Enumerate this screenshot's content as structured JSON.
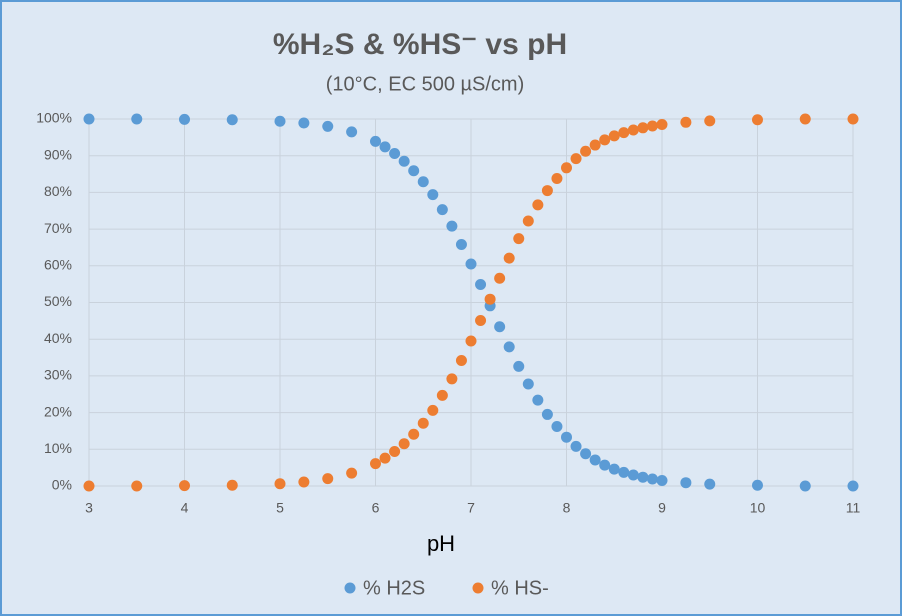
{
  "chart_data": {
    "type": "scatter",
    "title": "%H₂S & %HS⁻ vs pH",
    "subtitle": "(10°C, EC 500 µS/cm)",
    "x_label": "pH",
    "x": [
      3,
      3.5,
      4,
      4.5,
      5,
      5.25,
      5.5,
      5.75,
      6,
      6.1,
      6.2,
      6.3,
      6.4,
      6.5,
      6.6,
      6.7,
      6.8,
      6.9,
      7,
      7.1,
      7.2,
      7.3,
      7.4,
      7.5,
      7.6,
      7.7,
      7.8,
      7.9,
      8,
      8.1,
      8.2,
      8.3,
      8.4,
      8.5,
      8.6,
      8.7,
      8.8,
      8.9,
      9,
      9.25,
      9.5,
      10,
      10.5,
      11
    ],
    "series": [
      {
        "name": "% H2S",
        "color": "#5b9bd5",
        "values": [
          100.0,
          100.0,
          99.9,
          99.8,
          99.4,
          98.9,
          98.0,
          96.5,
          93.9,
          92.4,
          90.6,
          88.5,
          85.9,
          82.9,
          79.4,
          75.3,
          70.8,
          65.8,
          60.5,
          54.9,
          49.1,
          43.4,
          37.9,
          32.6,
          27.8,
          23.4,
          19.5,
          16.2,
          13.3,
          10.8,
          8.8,
          7.1,
          5.7,
          4.6,
          3.7,
          3.0,
          2.4,
          1.9,
          1.5,
          0.9,
          0.5,
          0.2,
          0.0,
          0.0
        ]
      },
      {
        "name": "% HS-",
        "color": "#ed7d31",
        "values": [
          0.0,
          0.0,
          0.1,
          0.2,
          0.6,
          1.1,
          2.0,
          3.5,
          6.1,
          7.6,
          9.4,
          11.5,
          14.1,
          17.1,
          20.6,
          24.7,
          29.2,
          34.2,
          39.5,
          45.1,
          50.9,
          56.6,
          62.1,
          67.4,
          72.2,
          76.6,
          80.5,
          83.8,
          86.7,
          89.2,
          91.2,
          92.9,
          94.3,
          95.4,
          96.3,
          97.0,
          97.6,
          98.1,
          98.5,
          99.1,
          99.5,
          99.8,
          100.0,
          100.0
        ]
      }
    ],
    "xlim": [
      3,
      11
    ],
    "xticks": [
      3,
      4,
      5,
      6,
      7,
      8,
      9,
      10,
      11
    ],
    "ylim": [
      0,
      100
    ],
    "yticks": [
      {
        "value": 0,
        "label": "0%"
      },
      {
        "value": 10,
        "label": "10%"
      },
      {
        "value": 20,
        "label": "20%"
      },
      {
        "value": 30,
        "label": "30%"
      },
      {
        "value": 40,
        "label": "40%"
      },
      {
        "value": 50,
        "label": "50%"
      },
      {
        "value": 60,
        "label": "60%"
      },
      {
        "value": 70,
        "label": "70%"
      },
      {
        "value": 80,
        "label": "80%"
      },
      {
        "value": 90,
        "label": "90%"
      },
      {
        "value": 100,
        "label": "100%"
      }
    ],
    "grid": true,
    "legend": "bottom"
  }
}
